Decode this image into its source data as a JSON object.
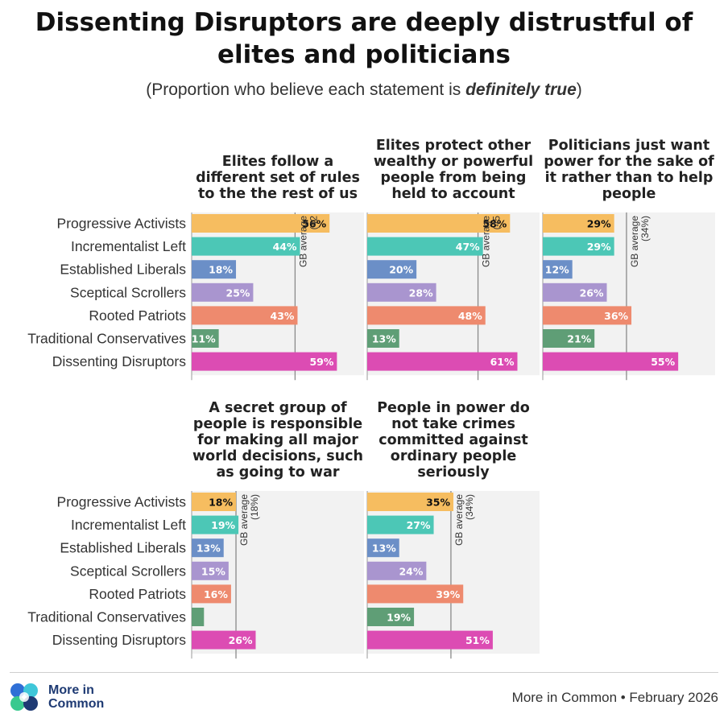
{
  "title": "Dissenting Disruptors are deeply distrustful of elites and politicians",
  "subtitle": {
    "prefix": "(Proportion who believe each statement is ",
    "emphasis": "definitely true",
    "suffix": ")"
  },
  "footer": {
    "logo_text": "More in Common",
    "source": "More in Common • February 2026"
  },
  "colors": {
    "Progressive Activists": "#f6bd60",
    "Incrementalist Left": "#4cc7b6",
    "Established Liberals": "#6b8fc7",
    "Sceptical Scrollers": "#a995cf",
    "Rooted Patriots": "#ee8a6e",
    "Traditional Conservatives": "#5f9e76",
    "Dissenting Disruptors": "#dc4cb3"
  },
  "chart_data": [
    {
      "type": "bar",
      "orientation": "horizontal",
      "title": "Elites follow a different set of rules to the the rest of us",
      "categories": [
        "Progressive Activists",
        "Incrementalist Left",
        "Established Liberals",
        "Sceptical Scrollers",
        "Rooted Patriots",
        "Traditional Conservatives",
        "Dissenting Disruptors"
      ],
      "values": [
        56,
        44,
        18,
        25,
        43,
        11,
        59
      ],
      "labels": [
        "56%",
        "44%",
        "18%",
        "25%",
        "43%",
        "11%",
        "59%"
      ],
      "reference_line": {
        "label": "GB average",
        "sublabel": "(42",
        "value": 42
      },
      "xlim": [
        0,
        70
      ]
    },
    {
      "type": "bar",
      "orientation": "horizontal",
      "title": "Elites protect other wealthy or powerful people from being held to account",
      "categories": [
        "Progressive Activists",
        "Incrementalist Left",
        "Established Liberals",
        "Sceptical Scrollers",
        "Rooted Patriots",
        "Traditional Conservatives",
        "Dissenting Disruptors"
      ],
      "values": [
        58,
        47,
        20,
        28,
        48,
        13,
        61
      ],
      "labels": [
        "58%",
        "47%",
        "20%",
        "28%",
        "48%",
        "13%",
        "61%"
      ],
      "reference_line": {
        "label": "GB average",
        "sublabel": "(45",
        "value": 45
      },
      "xlim": [
        0,
        70
      ]
    },
    {
      "type": "bar",
      "orientation": "horizontal",
      "title": "Politicians just want power for the sake of it rather than to help people",
      "categories": [
        "Progressive Activists",
        "Incrementalist Left",
        "Established Liberals",
        "Sceptical Scrollers",
        "Rooted Patriots",
        "Traditional Conservatives",
        "Dissenting Disruptors"
      ],
      "values": [
        29,
        29,
        12,
        26,
        36,
        21,
        55
      ],
      "labels": [
        "29%",
        "29%",
        "12%",
        "26%",
        "36%",
        "21%",
        "55%"
      ],
      "reference_line": {
        "label": "GB average",
        "sublabel": "(34%)",
        "value": 34
      },
      "xlim": [
        0,
        70
      ]
    },
    {
      "type": "bar",
      "orientation": "horizontal",
      "title": "A secret group of people is responsible for making all major world decisions, such as going to war",
      "categories": [
        "Progressive Activists",
        "Incrementalist Left",
        "Established Liberals",
        "Sceptical Scrollers",
        "Rooted Patriots",
        "Traditional Conservatives",
        "Dissenting Disruptors"
      ],
      "values": [
        18,
        19,
        13,
        15,
        16,
        5,
        26
      ],
      "labels": [
        "18%",
        "19%",
        "13%",
        "15%",
        "16%",
        "",
        "26%"
      ],
      "reference_line": {
        "label": "GB average",
        "sublabel": "(18%)",
        "value": 18
      },
      "xlim": [
        0,
        70
      ]
    },
    {
      "type": "bar",
      "orientation": "horizontal",
      "title": "People in power do not take crimes committed against ordinary people seriously",
      "categories": [
        "Progressive Activists",
        "Incrementalist Left",
        "Established Liberals",
        "Sceptical Scrollers",
        "Rooted Patriots",
        "Traditional Conservatives",
        "Dissenting Disruptors"
      ],
      "values": [
        35,
        27,
        13,
        24,
        39,
        19,
        51
      ],
      "labels": [
        "35%",
        "27%",
        "13%",
        "24%",
        "39%",
        "19%",
        "51%"
      ],
      "reference_line": {
        "label": "GB average",
        "sublabel": "(34%)",
        "value": 34
      },
      "xlim": [
        0,
        70
      ]
    }
  ]
}
